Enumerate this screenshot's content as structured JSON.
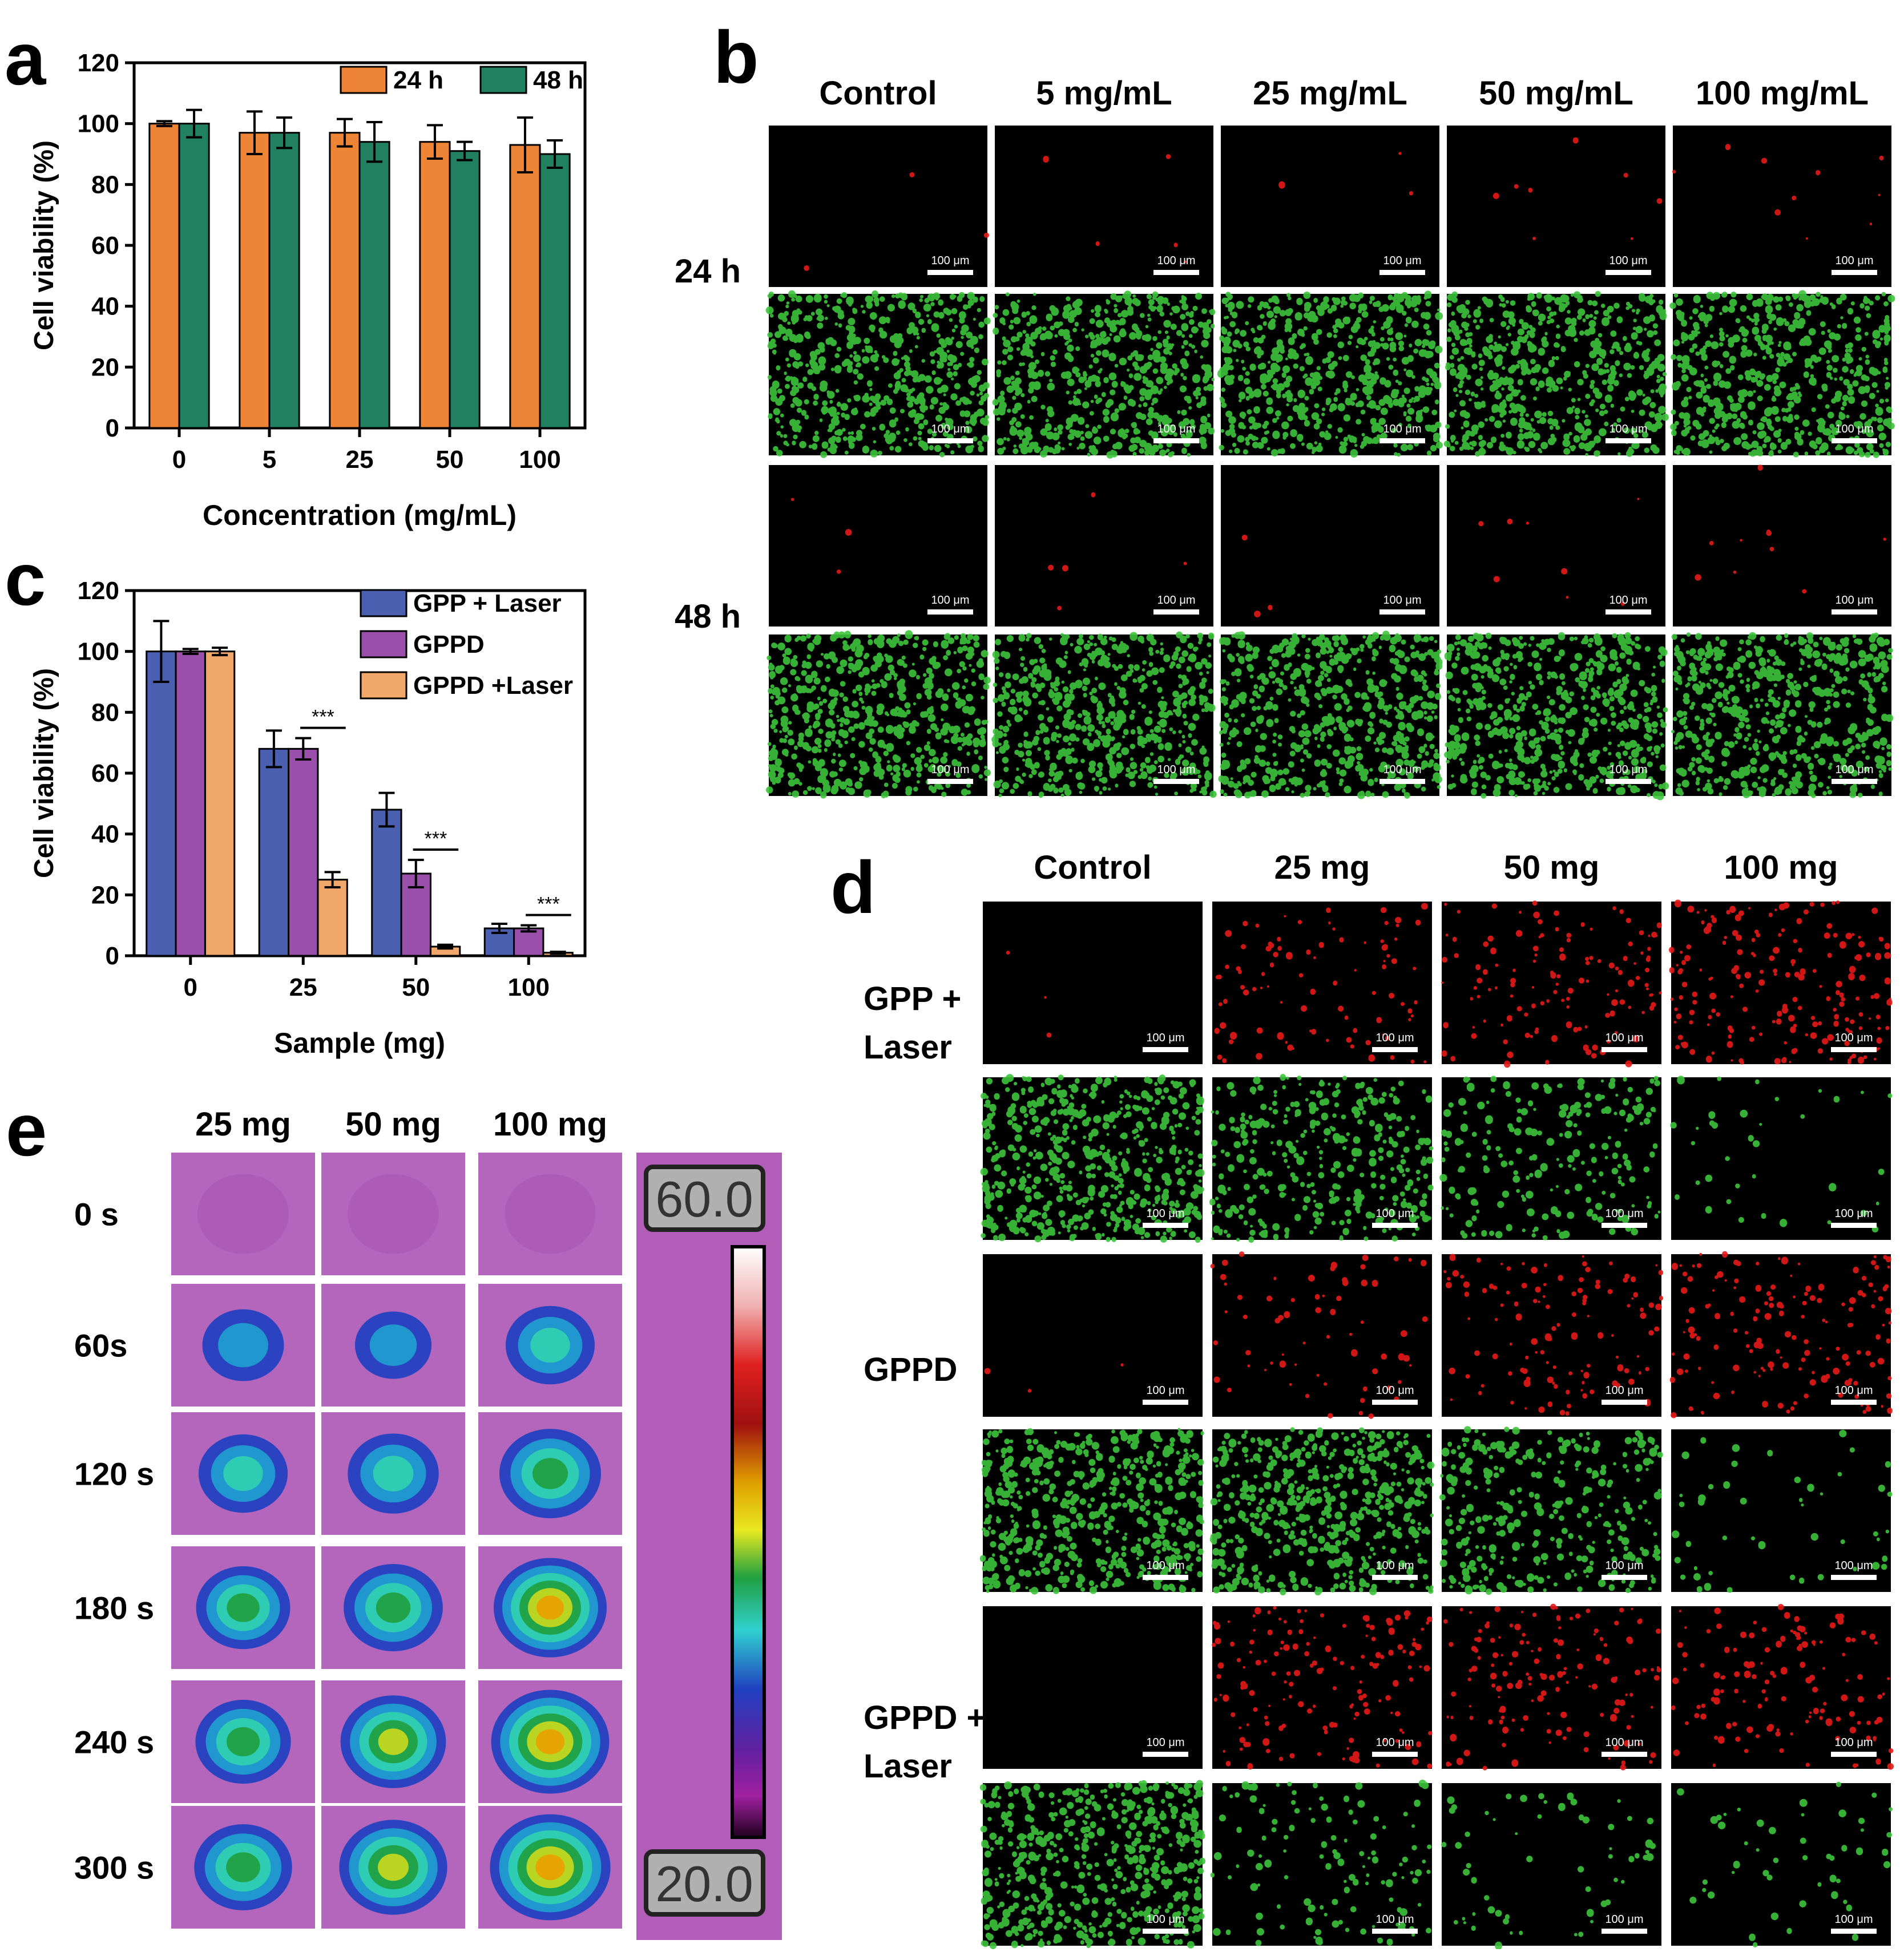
{
  "panels": {
    "a": "a",
    "b": "b",
    "c": "c",
    "d": "d",
    "e": "e"
  },
  "colors": {
    "orange": "#ee8435",
    "green": "#208060",
    "blue": "#4a5fb0",
    "purple": "#9a4faa",
    "peach": "#f1a76a",
    "fluor_green": "#3cc43c",
    "fluor_red": "#e81818",
    "thermal_bg": "#b25db8"
  },
  "chart_data": [
    {
      "id": "a",
      "type": "bar",
      "categories": [
        "0",
        "5",
        "25",
        "50",
        "100"
      ],
      "series": [
        {
          "name": "24 h",
          "values": [
            100,
            97,
            97,
            94,
            93
          ],
          "errors": [
            0.8,
            7,
            4.5,
            5.5,
            9
          ]
        },
        {
          "name": "48 h",
          "values": [
            100,
            97,
            94,
            91,
            90
          ],
          "errors": [
            4.5,
            5,
            6.5,
            3,
            4.5
          ]
        }
      ],
      "xlabel": "Concentration (mg/mL)",
      "ylabel": "Cell viability (%)",
      "ylim": [
        0,
        120
      ],
      "yticks": [
        "0",
        "20",
        "40",
        "60",
        "80",
        "100",
        "120"
      ],
      "legend": "top-right",
      "grid": false
    },
    {
      "id": "c",
      "type": "bar",
      "categories": [
        "0",
        "25",
        "50",
        "100"
      ],
      "series": [
        {
          "name": "GPP + Laser",
          "values": [
            100,
            68,
            48,
            9
          ],
          "errors": [
            10,
            6,
            5.5,
            1.5
          ]
        },
        {
          "name": "GPPD",
          "values": [
            100,
            68,
            27,
            9
          ],
          "errors": [
            0.8,
            3.5,
            4.5,
            1
          ]
        },
        {
          "name": "GPPD +Laser",
          "values": [
            100,
            25,
            3,
            1
          ],
          "errors": [
            1.2,
            2.5,
            0.6,
            0.3
          ]
        }
      ],
      "significance": [
        {
          "category": "25",
          "label": "***"
        },
        {
          "category": "50",
          "label": "***"
        },
        {
          "category": "100",
          "label": "***"
        }
      ],
      "xlabel": "Sample (mg)",
      "ylabel": "Cell viability (%)",
      "ylim": [
        0,
        120
      ],
      "yticks": [
        "0",
        "20",
        "40",
        "60",
        "80",
        "100",
        "120"
      ],
      "legend": "top-right",
      "grid": false
    }
  ],
  "panel_b": {
    "columns": [
      "Control",
      "5 mg/mL",
      "25 mg/mL",
      "50 mg/mL",
      "100 mg/mL"
    ],
    "rows": [
      "24 h",
      "48 h"
    ],
    "scale_bar": "100 μm"
  },
  "panel_d": {
    "columns": [
      "Control",
      "25  mg",
      "50  mg",
      "100 mg"
    ],
    "rows": [
      "GPP +\nLaser",
      "GPPD",
      "GPPD +\nLaser"
    ],
    "row_lines": [
      [
        "GPP +",
        "Laser"
      ],
      [
        "GPPD"
      ],
      [
        "GPPD +",
        "Laser"
      ]
    ],
    "red_density": [
      [
        0.01,
        0.35,
        0.5,
        0.75
      ],
      [
        0.01,
        0.25,
        0.45,
        0.6
      ],
      [
        0,
        0.6,
        0.55,
        0.5
      ]
    ],
    "green_density": [
      [
        0.9,
        0.55,
        0.35,
        0.06
      ],
      [
        0.9,
        0.85,
        0.55,
        0.08
      ],
      [
        0.9,
        0.2,
        0.1,
        0.08
      ]
    ],
    "scale_bar": "100 μm"
  },
  "panel_e": {
    "columns": [
      "25 mg",
      "50 mg",
      "100 mg"
    ],
    "rows": [
      "0 s",
      "60s",
      "120 s",
      "180 s",
      "240 s",
      "300 s"
    ],
    "scale_max": "60.0",
    "scale_min": "20.0",
    "intensity": [
      [
        0,
        0,
        0
      ],
      [
        0.3,
        0.22,
        0.42
      ],
      [
        0.42,
        0.45,
        0.62
      ],
      [
        0.5,
        0.58,
        0.8
      ],
      [
        0.52,
        0.68,
        0.88
      ],
      [
        0.56,
        0.72,
        0.92
      ]
    ]
  }
}
